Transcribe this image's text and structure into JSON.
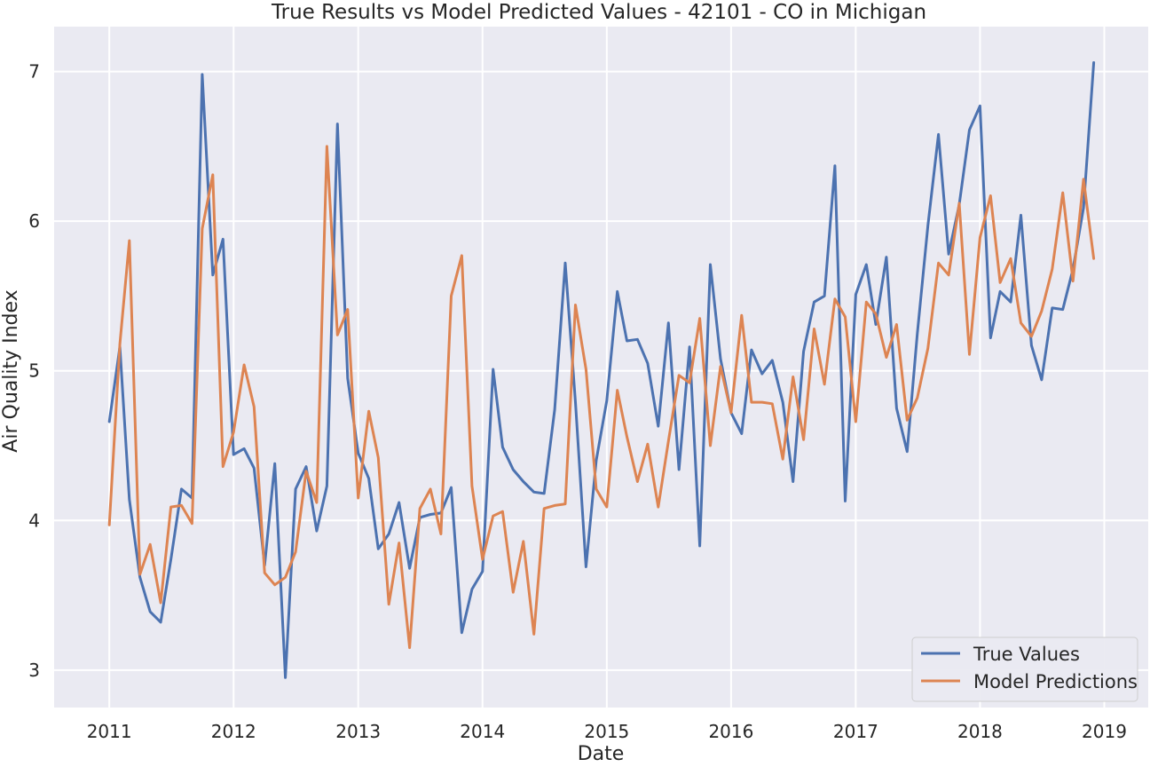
{
  "chart_data": {
    "type": "line",
    "title": "True Results vs Model Predicted Values - 42101 - CO in Michigan",
    "xlabel": "Date",
    "ylabel": "Air Quality Index",
    "x_ticks": [
      "2011",
      "2012",
      "2013",
      "2014",
      "2015",
      "2016",
      "2017",
      "2018",
      "2019"
    ],
    "y_ticks": [
      3,
      4,
      5,
      6,
      7
    ],
    "xlim": [
      "2010-07-23",
      "2019-05-10"
    ],
    "ylim": [
      2.75,
      7.3
    ],
    "grid": true,
    "legend_position": "lower-right",
    "x_dates": [
      "2011-01",
      "2011-02",
      "2011-03",
      "2011-04",
      "2011-05",
      "2011-06",
      "2011-07",
      "2011-08",
      "2011-09",
      "2011-10",
      "2011-11",
      "2011-12",
      "2012-01",
      "2012-02",
      "2012-03",
      "2012-04",
      "2012-05",
      "2012-06",
      "2012-07",
      "2012-08",
      "2012-09",
      "2012-10",
      "2012-11",
      "2012-12",
      "2013-01",
      "2013-02",
      "2013-03",
      "2013-04",
      "2013-05",
      "2013-06",
      "2013-07",
      "2013-08",
      "2013-09",
      "2013-10",
      "2013-11",
      "2013-12",
      "2014-01",
      "2014-02",
      "2014-03",
      "2014-04",
      "2014-05",
      "2014-06",
      "2014-07",
      "2014-08",
      "2014-09",
      "2014-10",
      "2014-11",
      "2014-12",
      "2015-01",
      "2015-02",
      "2015-03",
      "2015-04",
      "2015-05",
      "2015-06",
      "2015-07",
      "2015-08",
      "2015-09",
      "2015-10",
      "2015-11",
      "2015-12",
      "2016-01",
      "2016-02",
      "2016-03",
      "2016-04",
      "2016-05",
      "2016-06",
      "2016-07",
      "2016-08",
      "2016-09",
      "2016-10",
      "2016-11",
      "2016-12",
      "2017-01",
      "2017-02",
      "2017-03",
      "2017-04",
      "2017-05",
      "2017-06",
      "2017-07",
      "2017-08",
      "2017-09",
      "2017-10",
      "2017-11",
      "2017-12",
      "2018-01",
      "2018-02",
      "2018-03",
      "2018-04",
      "2018-05",
      "2018-06",
      "2018-07",
      "2018-08",
      "2018-09",
      "2018-10",
      "2018-11",
      "2018-12"
    ],
    "series": [
      {
        "name": "True Values",
        "color": "#4c72b0",
        "values": [
          4.66,
          5.16,
          4.14,
          3.62,
          3.39,
          3.32,
          3.74,
          4.21,
          4.15,
          6.98,
          5.64,
          5.88,
          4.44,
          4.48,
          4.35,
          3.7,
          4.38,
          2.95,
          4.21,
          4.36,
          3.93,
          4.23,
          6.65,
          4.95,
          4.45,
          4.28,
          3.81,
          3.91,
          4.12,
          3.68,
          4.02,
          4.04,
          4.05,
          4.22,
          3.25,
          3.54,
          3.66,
          5.01,
          4.49,
          4.34,
          4.26,
          4.19,
          4.18,
          4.74,
          5.72,
          4.79,
          3.69,
          4.4,
          4.8,
          5.53,
          5.2,
          5.21,
          5.05,
          4.63,
          5.32,
          4.34,
          5.16,
          3.83,
          5.71,
          5.08,
          4.72,
          4.58,
          5.14,
          4.98,
          5.07,
          4.79,
          4.26,
          5.13,
          5.46,
          5.5,
          6.37,
          4.13,
          5.51,
          5.71,
          5.31,
          5.76,
          4.75,
          4.46,
          5.25,
          5.97,
          6.58,
          5.78,
          6.11,
          6.61,
          6.77,
          5.22,
          5.53,
          5.46,
          6.04,
          5.17,
          4.94,
          5.42,
          5.41,
          5.68,
          6.09,
          7.06
        ]
      },
      {
        "name": "Model Predictions",
        "color": "#dd8452",
        "values": [
          3.97,
          5.18,
          5.87,
          3.64,
          3.84,
          3.45,
          4.09,
          4.1,
          3.98,
          5.95,
          6.31,
          4.36,
          4.59,
          5.04,
          4.76,
          3.65,
          3.57,
          3.62,
          3.79,
          4.33,
          4.12,
          6.5,
          5.24,
          5.41,
          4.15,
          4.73,
          4.42,
          3.44,
          3.85,
          3.15,
          4.08,
          4.21,
          3.91,
          5.5,
          5.77,
          4.23,
          3.74,
          4.03,
          4.06,
          3.52,
          3.86,
          3.24,
          4.08,
          4.1,
          4.11,
          5.44,
          5.01,
          4.21,
          4.09,
          4.87,
          4.56,
          4.26,
          4.51,
          4.09,
          4.53,
          4.97,
          4.92,
          5.35,
          4.5,
          5.03,
          4.72,
          5.37,
          4.79,
          4.79,
          4.78,
          4.41,
          4.96,
          4.54,
          5.28,
          4.91,
          5.48,
          5.36,
          4.66,
          5.46,
          5.38,
          5.09,
          5.31,
          4.67,
          4.82,
          5.15,
          5.72,
          5.64,
          6.12,
          5.11,
          5.89,
          6.17,
          5.59,
          5.75,
          5.32,
          5.23,
          5.4,
          5.68,
          6.19,
          5.6,
          6.28,
          5.75
        ]
      }
    ]
  }
}
